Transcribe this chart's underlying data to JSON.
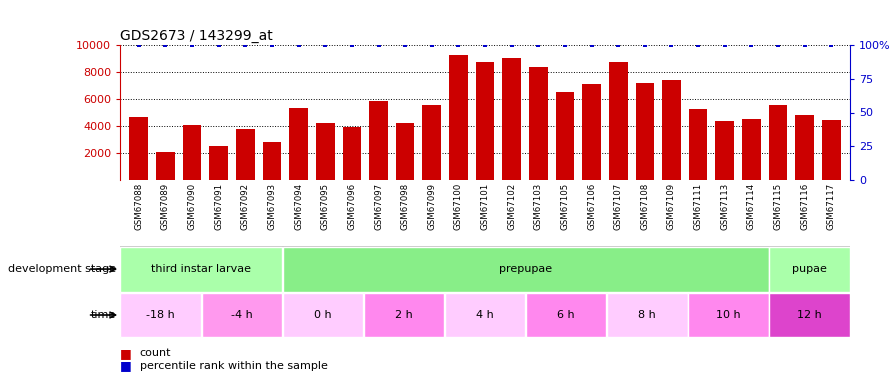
{
  "title": "GDS2673 / 143299_at",
  "samples": [
    "GSM67088",
    "GSM67089",
    "GSM67090",
    "GSM67091",
    "GSM67092",
    "GSM67093",
    "GSM67094",
    "GSM67095",
    "GSM67096",
    "GSM67097",
    "GSM67098",
    "GSM67099",
    "GSM67100",
    "GSM67101",
    "GSM67102",
    "GSM67103",
    "GSM67105",
    "GSM67106",
    "GSM67107",
    "GSM67108",
    "GSM67109",
    "GSM67111",
    "GSM67113",
    "GSM67114",
    "GSM67115",
    "GSM67116",
    "GSM67117"
  ],
  "counts": [
    4650,
    2050,
    4050,
    2550,
    3750,
    2800,
    5300,
    4200,
    3900,
    5850,
    4250,
    5550,
    9250,
    8750,
    9050,
    8350,
    6500,
    7100,
    8750,
    7200,
    7400,
    5250,
    4350,
    4500,
    5550,
    4800,
    4450
  ],
  "percentile_ranks": [
    100,
    100,
    100,
    100,
    100,
    100,
    100,
    100,
    100,
    100,
    100,
    100,
    100,
    100,
    100,
    100,
    100,
    100,
    100,
    100,
    100,
    100,
    100,
    100,
    100,
    100,
    100
  ],
  "bar_color": "#cc0000",
  "percentile_color": "#0000cc",
  "ylim_left": [
    0,
    10000
  ],
  "ylim_right": [
    0,
    100
  ],
  "yticks_left": [
    2000,
    4000,
    6000,
    8000,
    10000
  ],
  "yticks_right": [
    0,
    25,
    50,
    75,
    100
  ],
  "development_stages": [
    {
      "label": "third instar larvae",
      "start": 0,
      "end": 6,
      "color": "#aaffaa"
    },
    {
      "label": "prepupae",
      "start": 6,
      "end": 24,
      "color": "#88ee88"
    },
    {
      "label": "pupae",
      "start": 24,
      "end": 27,
      "color": "#aaffaa"
    }
  ],
  "time_groups": [
    {
      "label": "-18 h",
      "start": 0,
      "end": 3,
      "color": "#ffccff"
    },
    {
      "label": "-4 h",
      "start": 3,
      "end": 6,
      "color": "#ff99ee"
    },
    {
      "label": "0 h",
      "start": 6,
      "end": 9,
      "color": "#ffccff"
    },
    {
      "label": "2 h",
      "start": 9,
      "end": 12,
      "color": "#ff88ee"
    },
    {
      "label": "4 h",
      "start": 12,
      "end": 15,
      "color": "#ffccff"
    },
    {
      "label": "6 h",
      "start": 15,
      "end": 18,
      "color": "#ff88ee"
    },
    {
      "label": "8 h",
      "start": 18,
      "end": 21,
      "color": "#ffccff"
    },
    {
      "label": "10 h",
      "start": 21,
      "end": 24,
      "color": "#ff88ee"
    },
    {
      "label": "12 h",
      "start": 24,
      "end": 27,
      "color": "#dd44cc"
    }
  ],
  "tick_label_color_left": "#cc0000",
  "tick_label_color_right": "#0000cc",
  "label_dev_stage": "development stage",
  "label_time": "time",
  "legend_count": "count",
  "legend_pct": "percentile rank within the sample"
}
